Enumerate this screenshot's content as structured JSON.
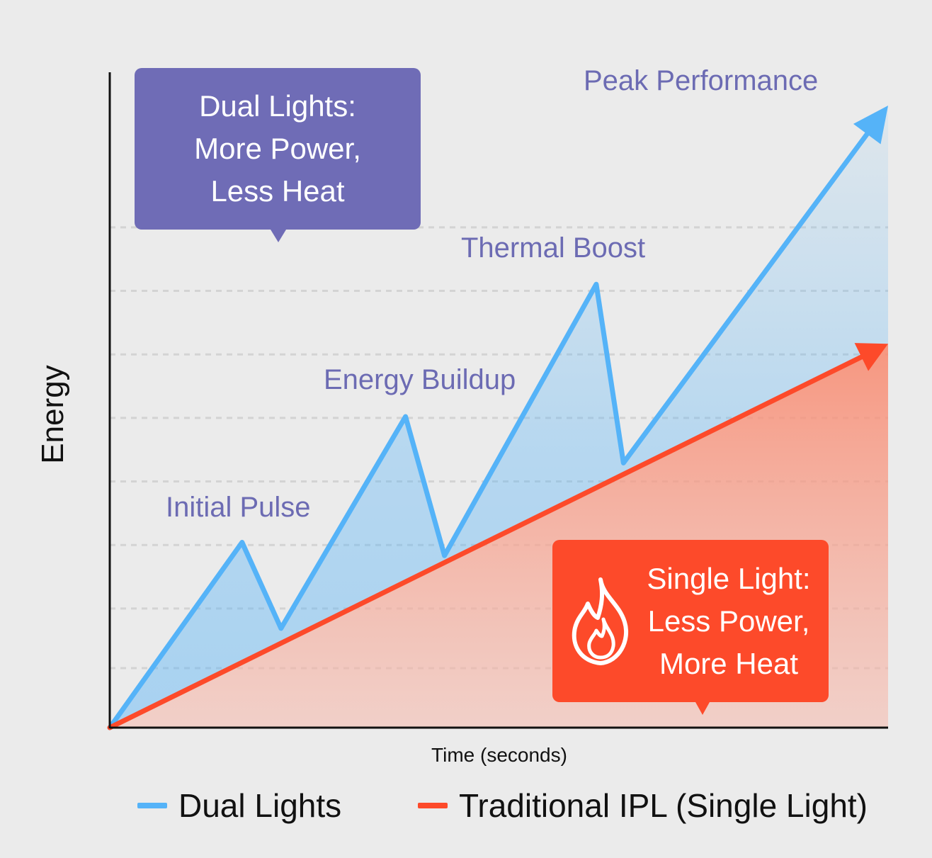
{
  "chart_data": {
    "type": "line",
    "title": "",
    "xlabel": "Time (seconds)",
    "ylabel": "Energy",
    "xlim": [
      0,
      100
    ],
    "ylim": [
      0,
      100
    ],
    "grid": "horizontal-dashed",
    "series": [
      {
        "name": "Dual Lights",
        "color": "#55b3f8",
        "x": [
          0,
          17,
          22,
          38,
          43,
          62.5,
          66,
          100
        ],
        "y": [
          0,
          28,
          15,
          47,
          26,
          67,
          40,
          94
        ]
      },
      {
        "name": "Traditional IPL (Single Light)",
        "color": "#fd4a2a",
        "x": [
          0,
          100
        ],
        "y": [
          0,
          58
        ]
      }
    ],
    "annotations": [
      {
        "text": "Initial Pulse",
        "x": 17,
        "y": 28
      },
      {
        "text": "Energy Buildup",
        "x": 38,
        "y": 47
      },
      {
        "text": "Thermal Boost",
        "x": 62.5,
        "y": 67
      },
      {
        "text": "Peak Performance",
        "x": 100,
        "y": 94
      }
    ]
  },
  "callouts": {
    "dual": {
      "line1": "Dual Lights:",
      "line2": "More Power,",
      "line3": "Less Heat",
      "color": "#6f6cb6"
    },
    "single": {
      "line1": "Single Light:",
      "line2": "Less Power,",
      "line3": "More Heat",
      "color": "#fd4a2a",
      "icon": "flame-icon"
    }
  },
  "legend": {
    "dual": {
      "label": "Dual Lights",
      "color": "#55b3f8"
    },
    "single": {
      "label": "Traditional IPL (Single Light)",
      "color": "#fd4a2a"
    }
  }
}
